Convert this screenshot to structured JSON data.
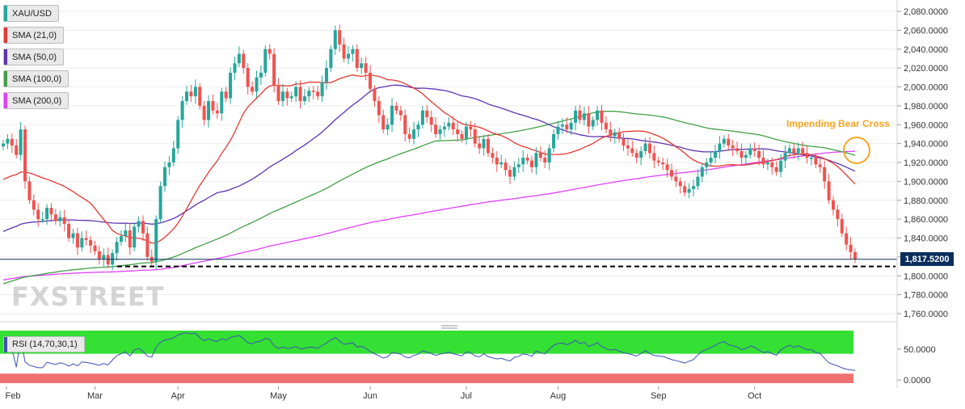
{
  "legend": {
    "symbol": "XAU/USD",
    "sma21": "SMA (21,0)",
    "sma50": "SMA (50,0)",
    "sma100": "SMA (100,0)",
    "sma200": "SMA (200,0)",
    "rsi": "RSI (14,70,30,1)"
  },
  "annotation": "Impending Bear Cross",
  "last_price": "1,817.5200",
  "watermark": "FXSTREET",
  "colors": {
    "up": "#26a69a",
    "down": "#ef5350",
    "sma21": "#e53935",
    "sma50": "#5e35b1",
    "sma100": "#43a047",
    "sma200": "#e040fb",
    "annotation": "#f5a623",
    "rsi_line": "#3f51b5",
    "rsi_overbought": "#33e033",
    "rsi_oversold": "#f07070"
  },
  "chart_data": [
    {
      "type": "candlestick",
      "title": "XAU/USD",
      "y_ticks": [
        "2,080.0000",
        "2,060.0000",
        "2,040.0000",
        "2,020.0000",
        "2,000.0000",
        "1,980.0000",
        "1,960.0000",
        "1,940.0000",
        "1,920.0000",
        "1,900.0000",
        "1,880.0000",
        "1,860.0000",
        "1,840.0000",
        "1,820.0000",
        "1,800.0000",
        "1,780.0000",
        "1,760.0000"
      ],
      "x_ticks": [
        "Feb",
        "Mar",
        "Apr",
        "May",
        "Jun",
        "Jul",
        "Aug",
        "Sep",
        "Oct"
      ],
      "ylim": [
        1750,
        2090
      ],
      "grid": true,
      "support_level": 1810,
      "current_price": 1817.52,
      "close": [
        1940,
        1945,
        1938,
        1928,
        1955,
        1900,
        1880,
        1870,
        1860,
        1860,
        1872,
        1865,
        1858,
        1862,
        1855,
        1840,
        1845,
        1830,
        1840,
        1838,
        1832,
        1826,
        1818,
        1822,
        1812,
        1824,
        1836,
        1842,
        1848,
        1830,
        1852,
        1858,
        1845,
        1820,
        1815,
        1860,
        1895,
        1915,
        1920,
        1935,
        1965,
        1985,
        1995,
        1990,
        2000,
        1980,
        1965,
        1985,
        1975,
        1972,
        1995,
        1988,
        2015,
        2025,
        2035,
        2020,
        2000,
        1995,
        2010,
        2015,
        2040,
        2035,
        2002,
        1985,
        1995,
        1988,
        1990,
        2000,
        1985,
        1990,
        1996,
        1995,
        1990,
        2005,
        2020,
        2040,
        2060,
        2045,
        2030,
        2035,
        2040,
        2020,
        2025,
        2015,
        1998,
        1985,
        1970,
        1955,
        1960,
        1980,
        1975,
        1970,
        1950,
        1945,
        1955,
        1960,
        1975,
        1968,
        1960,
        1950,
        1955,
        1958,
        1962,
        1955,
        1950,
        1945,
        1958,
        1955,
        1940,
        1935,
        1945,
        1930,
        1925,
        1918,
        1920,
        1912,
        1905,
        1915,
        1918,
        1925,
        1922,
        1915,
        1930,
        1925,
        1920,
        1935,
        1950,
        1958,
        1960,
        1955,
        1962,
        1975,
        1965,
        1972,
        1958,
        1965,
        1975,
        1962,
        1955,
        1948,
        1952,
        1945,
        1938,
        1935,
        1930,
        1925,
        1932,
        1940,
        1930,
        1922,
        1920,
        1918,
        1912,
        1905,
        1900,
        1895,
        1888,
        1892,
        1895,
        1905,
        1915,
        1920,
        1925,
        1932,
        1940,
        1945,
        1938,
        1935,
        1932,
        1925,
        1928,
        1935,
        1932,
        1925,
        1918,
        1920,
        1915,
        1910,
        1922,
        1930,
        1935,
        1930,
        1935,
        1930,
        1925,
        1925,
        1918,
        1915,
        1900,
        1880,
        1870,
        1860,
        1845,
        1833,
        1825,
        1817.52
      ],
      "rsi": {
        "ylim": [
          -5,
          80
        ],
        "overbought": 70,
        "oversold": 30,
        "y_ticks": [
          "50.0000",
          "0.0000"
        ]
      }
    }
  ]
}
